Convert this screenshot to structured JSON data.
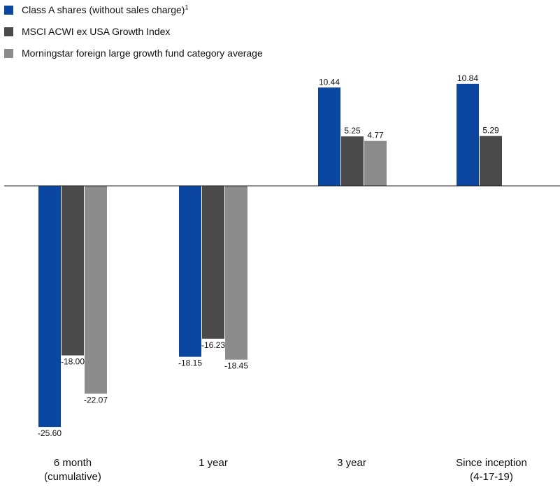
{
  "legend": {
    "items": [
      {
        "label": "Class A shares (without sales charge)",
        "sup": "1",
        "color": "#0b47a1"
      },
      {
        "label": "MSCI ACWI ex USA Growth Index",
        "sup": "",
        "color": "#4a4a4a"
      },
      {
        "label": "Morningstar foreign large growth fund category average",
        "sup": "",
        "color": "#8c8c8c"
      }
    ]
  },
  "chart_data": {
    "type": "bar",
    "categories": [
      [
        "6 month",
        "(cumulative)"
      ],
      [
        "1 year"
      ],
      [
        "3 year"
      ],
      [
        "Since inception",
        "(4-17-19)"
      ]
    ],
    "series": [
      {
        "name": "Class A shares (without sales charge)",
        "color": "#0b47a1",
        "values": [
          -25.6,
          -18.15,
          10.44,
          10.84
        ],
        "labels": [
          "-25.60",
          "-18.15",
          "10.44",
          "10.84"
        ]
      },
      {
        "name": "MSCI ACWI ex USA Growth Index",
        "color": "#4a4a4a",
        "values": [
          -18.0,
          -16.23,
          5.25,
          5.29
        ],
        "labels": [
          "-18.00",
          "-16.23",
          "5.25",
          "5.29"
        ]
      },
      {
        "name": "Morningstar foreign large growth fund category average",
        "color": "#8c8c8c",
        "values": [
          -22.07,
          -18.45,
          4.77,
          null
        ],
        "labels": [
          "-22.07",
          "-18.45",
          "4.77",
          ""
        ]
      }
    ],
    "title": "",
    "xlabel": "",
    "ylabel": "",
    "grid": false,
    "legend_position": "top-left",
    "baseline": 0
  }
}
